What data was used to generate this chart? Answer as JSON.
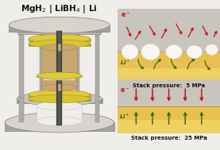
{
  "title": "MgH₂ | LiBH₄ | Li",
  "panel1_label": "Stack pressure:  5 MPa",
  "panel2_label": "Stack pressure:  25 MPa",
  "bg_color": "#f0eeeb",
  "panel1_bg_gray": "#c8c4c0",
  "panel1_bg_yellow": "#e8c86a",
  "panel2_bg_gray": "#c8c4c0",
  "panel2_bg_yellow_top": "#e0ba50",
  "panel2_bg_yellow_bot": "#f0d878",
  "arrow_red": "#cc1010",
  "arrow_green": "#3a6a18",
  "title_color": "#111111",
  "press_plate_color": "#c8c5b8",
  "press_plate_edge": "#a0a0a0",
  "press_rod_color": "#b0b0b0",
  "press_yellow": "#d8c840",
  "press_tan": "#c8a870",
  "press_white": "#f0f0f0",
  "press_steel": "#c0bab0"
}
